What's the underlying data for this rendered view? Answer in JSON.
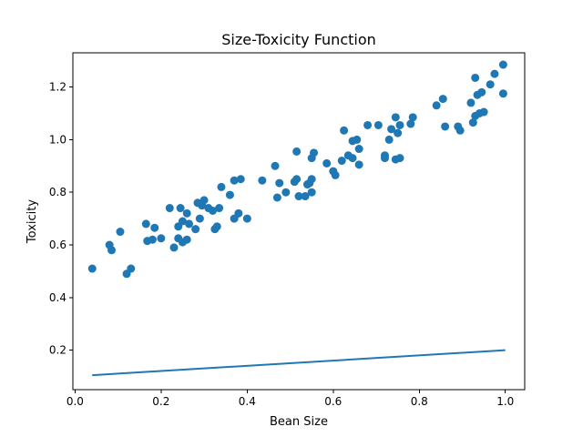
{
  "colors": {
    "marker": "#1f77b4",
    "line": "#1f77b4"
  },
  "chart_data": {
    "type": "scatter",
    "title": "Size-Toxicity Function",
    "xlabel": "Bean Size",
    "ylabel": "Toxicity",
    "xlim": [
      -0.005,
      1.045
    ],
    "ylim": [
      0.05,
      1.33
    ],
    "grid": false,
    "x_ticks": [
      0.0,
      0.2,
      0.4,
      0.6,
      0.8,
      1.0
    ],
    "x_tick_labels": [
      "0.0",
      "0.2",
      "0.4",
      "0.6",
      "0.8",
      "1.0"
    ],
    "y_ticks": [
      0.2,
      0.4,
      0.6,
      0.8,
      1.0,
      1.2
    ],
    "y_tick_labels": [
      "0.2",
      "0.4",
      "0.6",
      "0.8",
      "1.0",
      "1.2"
    ],
    "series": [
      {
        "type": "scatter",
        "points": [
          [
            0.04,
            0.51
          ],
          [
            0.08,
            0.6
          ],
          [
            0.085,
            0.58
          ],
          [
            0.105,
            0.65
          ],
          [
            0.12,
            0.49
          ],
          [
            0.13,
            0.51
          ],
          [
            0.165,
            0.68
          ],
          [
            0.168,
            0.615
          ],
          [
            0.18,
            0.62
          ],
          [
            0.185,
            0.665
          ],
          [
            0.2,
            0.625
          ],
          [
            0.22,
            0.74
          ],
          [
            0.23,
            0.59
          ],
          [
            0.24,
            0.67
          ],
          [
            0.24,
            0.625
          ],
          [
            0.245,
            0.74
          ],
          [
            0.25,
            0.61
          ],
          [
            0.25,
            0.69
          ],
          [
            0.26,
            0.62
          ],
          [
            0.26,
            0.72
          ],
          [
            0.265,
            0.68
          ],
          [
            0.28,
            0.66
          ],
          [
            0.285,
            0.76
          ],
          [
            0.29,
            0.7
          ],
          [
            0.295,
            0.75
          ],
          [
            0.3,
            0.77
          ],
          [
            0.31,
            0.74
          ],
          [
            0.32,
            0.73
          ],
          [
            0.325,
            0.66
          ],
          [
            0.33,
            0.67
          ],
          [
            0.335,
            0.74
          ],
          [
            0.34,
            0.82
          ],
          [
            0.36,
            0.79
          ],
          [
            0.37,
            0.7
          ],
          [
            0.37,
            0.845
          ],
          [
            0.38,
            0.72
          ],
          [
            0.385,
            0.85
          ],
          [
            0.4,
            0.7
          ],
          [
            0.435,
            0.845
          ],
          [
            0.465,
            0.9
          ],
          [
            0.47,
            0.78
          ],
          [
            0.475,
            0.835
          ],
          [
            0.49,
            0.8
          ],
          [
            0.51,
            0.84
          ],
          [
            0.515,
            0.85
          ],
          [
            0.515,
            0.955
          ],
          [
            0.52,
            0.785
          ],
          [
            0.535,
            0.785
          ],
          [
            0.54,
            0.83
          ],
          [
            0.545,
            0.835
          ],
          [
            0.55,
            0.93
          ],
          [
            0.55,
            0.85
          ],
          [
            0.55,
            0.8
          ],
          [
            0.555,
            0.95
          ],
          [
            0.585,
            0.91
          ],
          [
            0.6,
            0.88
          ],
          [
            0.605,
            0.865
          ],
          [
            0.62,
            0.92
          ],
          [
            0.625,
            1.035
          ],
          [
            0.635,
            0.94
          ],
          [
            0.645,
            0.93
          ],
          [
            0.645,
            0.995
          ],
          [
            0.655,
            1.0
          ],
          [
            0.66,
            0.965
          ],
          [
            0.66,
            0.905
          ],
          [
            0.68,
            1.055
          ],
          [
            0.705,
            1.055
          ],
          [
            0.72,
            0.94
          ],
          [
            0.72,
            0.93
          ],
          [
            0.73,
            1.0
          ],
          [
            0.735,
            1.04
          ],
          [
            0.745,
            0.925
          ],
          [
            0.745,
            1.085
          ],
          [
            0.75,
            1.025
          ],
          [
            0.755,
            1.055
          ],
          [
            0.755,
            0.93
          ],
          [
            0.78,
            1.06
          ],
          [
            0.785,
            1.085
          ],
          [
            0.84,
            1.13
          ],
          [
            0.855,
            1.155
          ],
          [
            0.86,
            1.05
          ],
          [
            0.89,
            1.05
          ],
          [
            0.895,
            1.035
          ],
          [
            0.92,
            1.14
          ],
          [
            0.925,
            1.065
          ],
          [
            0.93,
            1.235
          ],
          [
            0.93,
            1.09
          ],
          [
            0.935,
            1.17
          ],
          [
            0.94,
            1.1
          ],
          [
            0.945,
            1.18
          ],
          [
            0.95,
            1.105
          ],
          [
            0.965,
            1.21
          ],
          [
            0.975,
            1.25
          ],
          [
            0.995,
            1.285
          ],
          [
            0.995,
            1.175
          ]
        ]
      },
      {
        "type": "line",
        "points": [
          [
            0.04,
            0.105
          ],
          [
            1.0,
            0.2
          ]
        ]
      }
    ]
  }
}
